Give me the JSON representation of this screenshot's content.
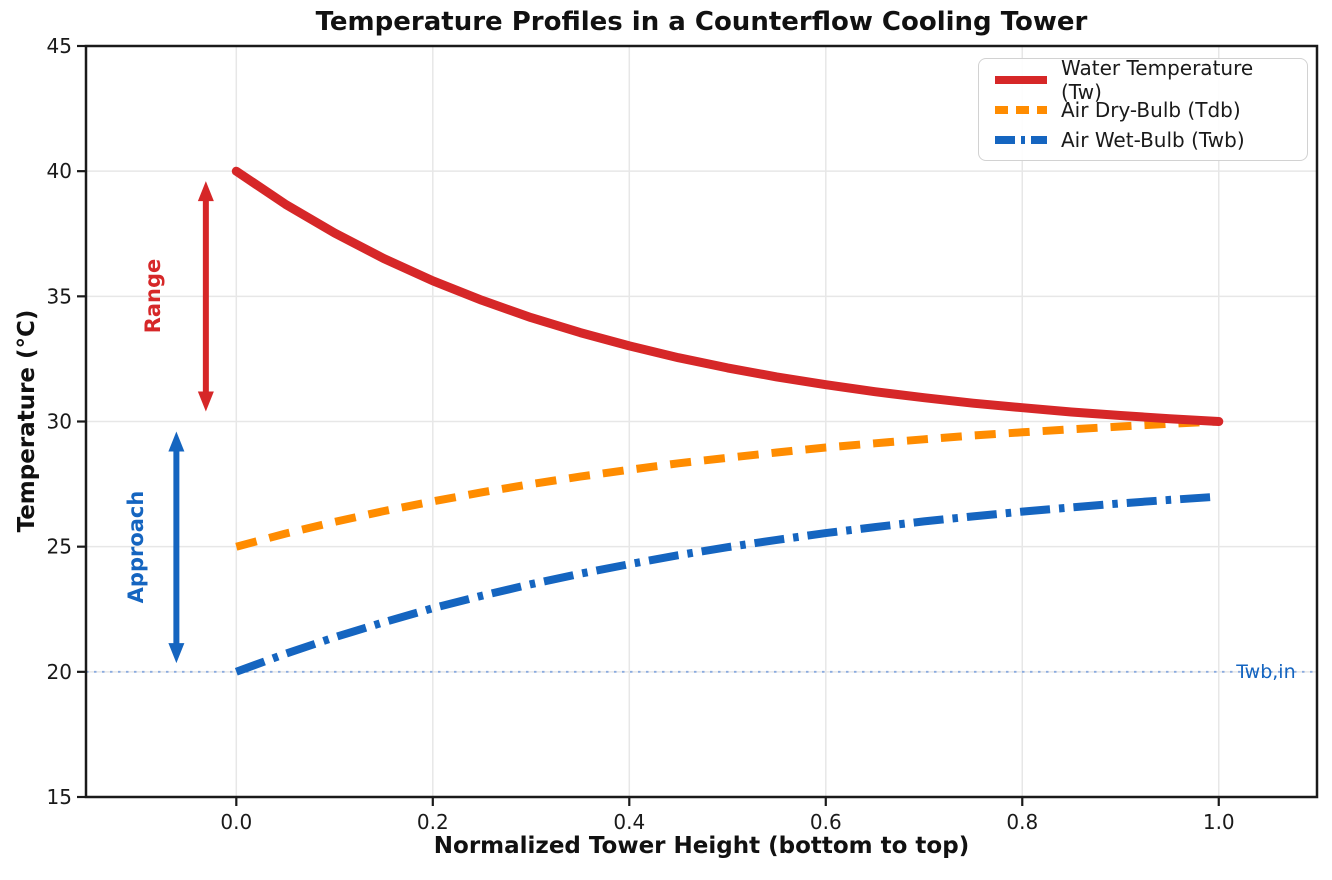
{
  "chart_data": {
    "type": "line",
    "title": "Temperature Profiles in a Counterflow Cooling Tower",
    "xlabel": "Normalized Tower Height (bottom to top)",
    "ylabel": "Temperature (°C)",
    "xlim": [
      -0.153,
      1.1
    ],
    "ylim": [
      15,
      45
    ],
    "grid": true,
    "legend_position": "upper right",
    "xticks": {
      "values": [
        0.0,
        0.2,
        0.4,
        0.6,
        0.8,
        1.0
      ],
      "labels": [
        "0.0",
        "0.2",
        "0.4",
        "0.6",
        "0.8",
        "1.0"
      ]
    },
    "yticks": {
      "values": [
        15,
        20,
        25,
        30,
        35,
        40,
        45
      ],
      "labels": [
        "15",
        "20",
        "25",
        "30",
        "35",
        "40",
        "45"
      ]
    },
    "x": [
      0,
      0.05,
      0.1,
      0.15,
      0.2,
      0.25,
      0.3,
      0.35,
      0.4,
      0.45,
      0.5,
      0.55,
      0.6,
      0.65,
      0.7,
      0.75,
      0.8,
      0.85,
      0.9,
      0.95,
      1.0
    ],
    "series": [
      {
        "name": "Water Temperature (Tw)",
        "color": "#d62728",
        "line_style": "solid",
        "line_width": 9,
        "values": [
          40.0,
          38.68,
          37.53,
          36.51,
          35.62,
          34.84,
          34.15,
          33.55,
          33.02,
          32.55,
          32.14,
          31.78,
          31.47,
          31.19,
          30.95,
          30.73,
          30.55,
          30.38,
          30.24,
          30.11,
          30.0
        ]
      },
      {
        "name": "Air Dry-Bulb (Tdb)",
        "color": "#ff8c00",
        "line_style": "dashed",
        "line_width": 8,
        "values": [
          25.0,
          25.52,
          25.99,
          26.42,
          26.81,
          27.17,
          27.5,
          27.8,
          28.07,
          28.33,
          28.55,
          28.76,
          28.96,
          29.13,
          29.29,
          29.44,
          29.57,
          29.69,
          29.8,
          29.91,
          30.0
        ]
      },
      {
        "name": "Air Wet-Bulb (Twb)",
        "color": "#1565c0",
        "line_style": "dashdot",
        "line_width": 8,
        "values": [
          20.0,
          20.72,
          21.38,
          21.98,
          22.54,
          23.04,
          23.5,
          23.92,
          24.3,
          24.66,
          24.98,
          25.27,
          25.54,
          25.78,
          26.01,
          26.21,
          26.4,
          26.57,
          26.73,
          26.87,
          27.0
        ]
      }
    ],
    "annotations": {
      "range_arrow": {
        "label": "Range",
        "x": -0.031,
        "y_from": 30.4,
        "y_to": 39.6,
        "color": "#d62728",
        "label_x": -0.085,
        "label_y": 35
      },
      "approach_arrow": {
        "label": "Approach",
        "x": -0.061,
        "y_from": 20.35,
        "y_to": 29.6,
        "color": "#1565c0",
        "label_x": -0.102,
        "label_y": 25
      },
      "reference_line": {
        "label": "Twb,in",
        "y": 20,
        "line_color": "#8aabdf",
        "label_color": "#1565c0",
        "label_x": 1.048
      }
    },
    "colors": {
      "grid": "#e7e7e7",
      "spine": "#1a1a1a",
      "text": "#1a1a1a"
    }
  }
}
